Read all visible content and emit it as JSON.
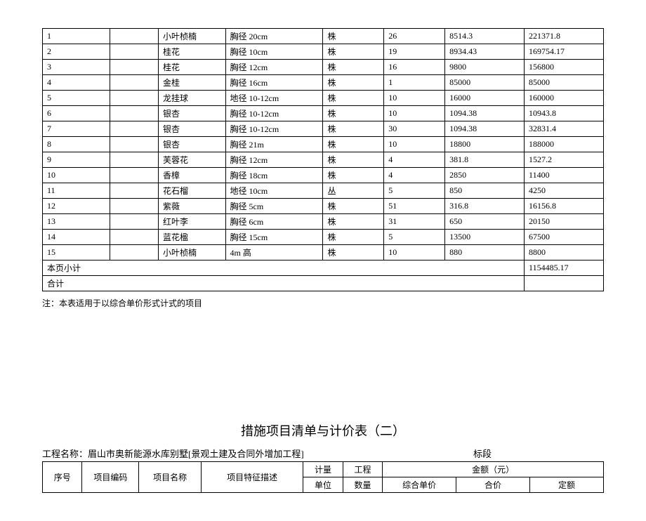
{
  "table1": {
    "rows": [
      {
        "no": "1",
        "b": "",
        "name": "小叶桢楠",
        "spec": "胸径 20cm",
        "unit": "株",
        "qty": "26",
        "price": "8514.3",
        "amount": "221371.8"
      },
      {
        "no": "2",
        "b": "",
        "name": "桂花",
        "spec": "胸径 10cm",
        "unit": "株",
        "qty": "19",
        "price": "8934.43",
        "amount": "169754.17"
      },
      {
        "no": "3",
        "b": "",
        "name": "桂花",
        "spec": "胸径 12cm",
        "unit": "株",
        "qty": "16",
        "price": "9800",
        "amount": "156800"
      },
      {
        "no": "4",
        "b": "",
        "name": "金桂",
        "spec": "胸径 16cm",
        "unit": "株",
        "qty": "1",
        "price": "85000",
        "amount": "85000"
      },
      {
        "no": "5",
        "b": "",
        "name": "龙挂球",
        "spec": "地径 10-12cm",
        "unit": "株",
        "qty": "10",
        "price": "16000",
        "amount": "160000"
      },
      {
        "no": "6",
        "b": "",
        "name": "银杏",
        "spec": "胸径 10-12cm",
        "unit": "株",
        "qty": "10",
        "price": "1094.38",
        "amount": "10943.8"
      },
      {
        "no": "7",
        "b": "",
        "name": "银杏",
        "spec": "胸径 10-12cm",
        "unit": "株",
        "qty": "30",
        "price": "1094.38",
        "amount": "32831.4"
      },
      {
        "no": "8",
        "b": "",
        "name": "银杏",
        "spec": "胸径 21m",
        "unit": "株",
        "qty": "10",
        "price": "18800",
        "amount": "188000"
      },
      {
        "no": "9",
        "b": "",
        "name": "芙蓉花",
        "spec": "胸径 12cm",
        "unit": "株",
        "qty": "4",
        "price": "381.8",
        "amount": "1527.2"
      },
      {
        "no": "10",
        "b": "",
        "name": "香樟",
        "spec": "胸径 18cm",
        "unit": "株",
        "qty": "4",
        "price": "2850",
        "amount": "11400"
      },
      {
        "no": "11",
        "b": "",
        "name": "花石榴",
        "spec": "地径 10cm",
        "unit": "丛",
        "qty": "5",
        "price": "850",
        "amount": "4250"
      },
      {
        "no": "12",
        "b": "",
        "name": "紫薇",
        "spec": "胸径 5cm",
        "unit": "株",
        "qty": "51",
        "price": "316.8",
        "amount": "16156.8"
      },
      {
        "no": "13",
        "b": "",
        "name": "红叶李",
        "spec": "胸径 6cm",
        "unit": "株",
        "qty": "31",
        "price": "650",
        "amount": "20150"
      },
      {
        "no": "14",
        "b": "",
        "name": "蓝花楹",
        "spec": "胸径 15cm",
        "unit": "株",
        "qty": "5",
        "price": "13500",
        "amount": "67500"
      },
      {
        "no": "15",
        "b": "",
        "name": "小叶桢楠",
        "spec": "4m 高",
        "unit": "株",
        "qty": "10",
        "price": "880",
        "amount": "8800"
      }
    ],
    "subtotal_label": "本页小计",
    "subtotal_amount": "1154485.17",
    "total_label": "合计",
    "note": "注：本表适用于以综合单价形式计式的项目"
  },
  "section2": {
    "title": "措施项目清单与计价表（二）",
    "project_label": "工程名称：",
    "project_name": "眉山市奥新能源水库别墅[景观土建及合同外增加工程]",
    "bid_label": "标段",
    "headers": {
      "no": "序号",
      "code": "项目编码",
      "name": "项目名称",
      "desc": "项目特征描述",
      "unit": "计量\n单位",
      "unit_l1": "计量",
      "unit_l2": "单位",
      "qty_l1": "工程",
      "qty_l2": "数量",
      "amount_group": "金额（元）",
      "unit_price": "综合单价",
      "total": "合价",
      "quota": "定额"
    }
  }
}
